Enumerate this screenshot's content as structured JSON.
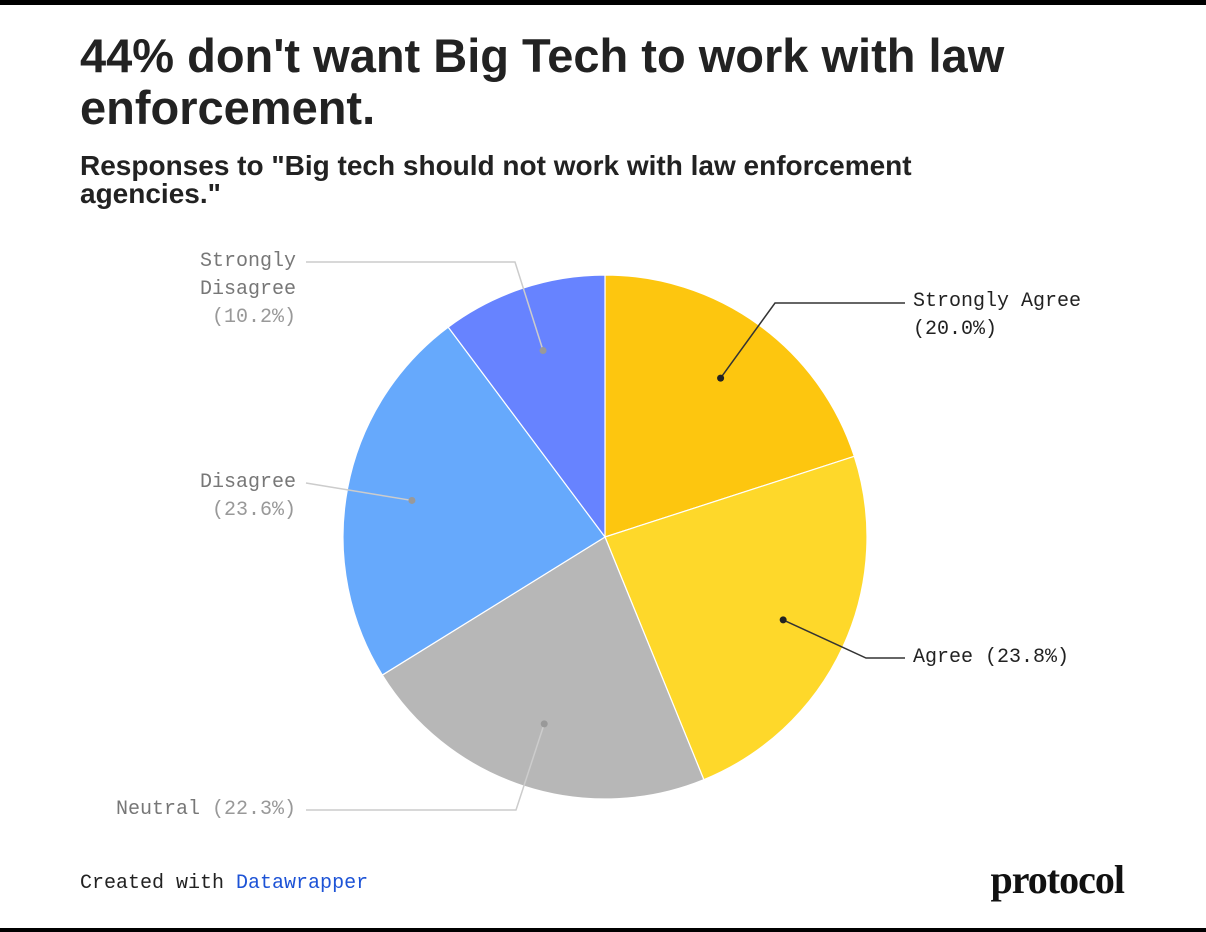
{
  "chart_data": {
    "type": "pie",
    "title": "44% don't want Big Tech to work with law enforcement.",
    "subtitle": "Responses to \"Big tech should not work with law enforcement agencies.\"",
    "categories": [
      "Strongly Agree",
      "Agree",
      "Neutral",
      "Disagree",
      "Strongly Disagree"
    ],
    "values": [
      20.0,
      23.8,
      22.3,
      23.6,
      10.2
    ],
    "value_labels": [
      "(20.0%)",
      "(23.8%)",
      "(22.3%)",
      "(23.6%)",
      "(10.2%)"
    ],
    "colors": [
      "#fdc60f",
      "#fed82a",
      "#b7b7b7",
      "#66a9fc",
      "#6783ff"
    ],
    "credit": {
      "prefix": "Created with",
      "link": "Datawrapper"
    },
    "logo": "protocol"
  }
}
